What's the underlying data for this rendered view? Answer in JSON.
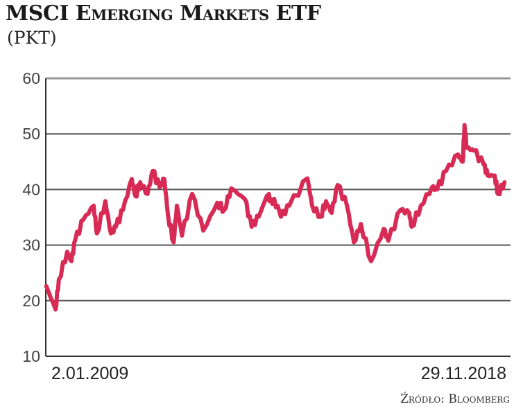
{
  "chart_data": {
    "type": "line",
    "title": "MSCI Emerging Markets ETF",
    "subtitle": "(PKT)",
    "source": "Źródło: Bloomberg",
    "xlabel": "",
    "ylabel": "pkt",
    "ylim": [
      10,
      60
    ],
    "yticks": [
      10,
      20,
      30,
      40,
      50,
      60
    ],
    "xlim": [
      2009.0,
      2018.91
    ],
    "x_tick_labels": [
      "2.01.2009",
      "29.11.2018"
    ],
    "grid": true,
    "line_color": "#d72a55",
    "series": [
      {
        "name": "MSCI Emerging Markets ETF",
        "points": [
          [
            2009.01,
            22.6
          ],
          [
            2009.21,
            18.4
          ],
          [
            2009.28,
            23.8
          ],
          [
            2009.46,
            28.8
          ],
          [
            2009.55,
            27.1
          ],
          [
            2009.63,
            30.8
          ],
          [
            2009.81,
            34.6
          ],
          [
            2010.03,
            37.1
          ],
          [
            2010.1,
            32.1
          ],
          [
            2010.28,
            37.9
          ],
          [
            2010.4,
            32.1
          ],
          [
            2010.51,
            33.3
          ],
          [
            2010.66,
            36.3
          ],
          [
            2010.85,
            41.9
          ],
          [
            2010.93,
            38.8
          ],
          [
            2011.03,
            41.3
          ],
          [
            2011.19,
            39.2
          ],
          [
            2011.3,
            43.3
          ],
          [
            2011.45,
            40.4
          ],
          [
            2011.55,
            41.9
          ],
          [
            2011.63,
            35.4
          ],
          [
            2011.75,
            30.5
          ],
          [
            2011.82,
            37.1
          ],
          [
            2011.93,
            31.7
          ],
          [
            2012.15,
            39.2
          ],
          [
            2012.39,
            32.6
          ],
          [
            2012.69,
            37.6
          ],
          [
            2012.84,
            36.3
          ],
          [
            2012.99,
            40.2
          ],
          [
            2013.28,
            38.3
          ],
          [
            2013.43,
            33.3
          ],
          [
            2013.58,
            35.1
          ],
          [
            2013.76,
            38.9
          ],
          [
            2013.84,
            38.3
          ],
          [
            2013.99,
            37.1
          ],
          [
            2014.06,
            35.1
          ],
          [
            2014.24,
            37.1
          ],
          [
            2014.63,
            42.0
          ],
          [
            2014.73,
            37.1
          ],
          [
            2014.91,
            35.1
          ],
          [
            2015.03,
            37.9
          ],
          [
            2015.15,
            35.8
          ],
          [
            2015.28,
            40.8
          ],
          [
            2015.48,
            37.1
          ],
          [
            2015.63,
            30.5
          ],
          [
            2015.78,
            33.8
          ],
          [
            2016.0,
            27.1
          ],
          [
            2016.27,
            32.9
          ],
          [
            2016.37,
            30.8
          ],
          [
            2016.63,
            36.3
          ],
          [
            2016.82,
            35.8
          ],
          [
            2016.87,
            33.3
          ],
          [
            2017.07,
            37.1
          ],
          [
            2017.31,
            40.4
          ],
          [
            2017.42,
            40.0
          ],
          [
            2017.61,
            43.3
          ],
          [
            2017.87,
            46.3
          ],
          [
            2017.97,
            45.0
          ],
          [
            2018.01,
            51.6
          ],
          [
            2018.06,
            47.5
          ],
          [
            2018.21,
            47.0
          ],
          [
            2018.42,
            44.5
          ],
          [
            2018.51,
            42.5
          ],
          [
            2018.66,
            42.5
          ],
          [
            2018.73,
            39.2
          ],
          [
            2018.87,
            41.3
          ]
        ]
      }
    ]
  }
}
